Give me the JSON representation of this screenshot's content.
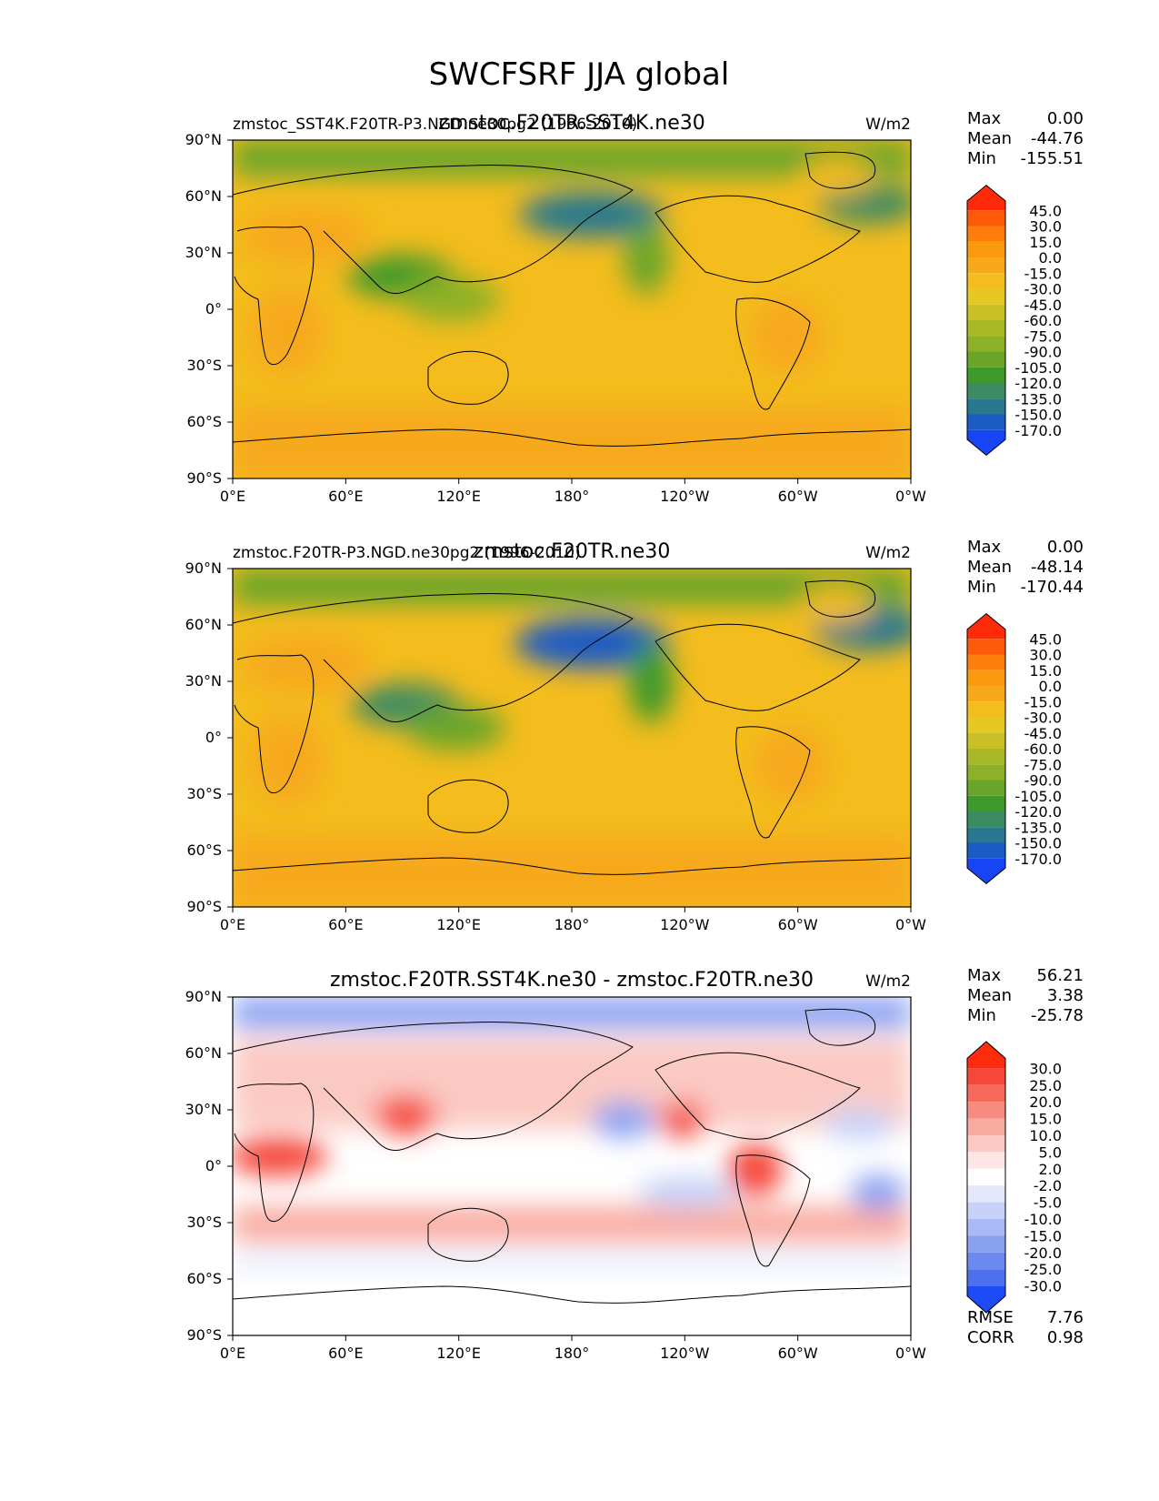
{
  "chart_data": {
    "type": "heatmap",
    "title": "SWCFSRF JJA global",
    "lon_ticks": [
      "0°E",
      "60°E",
      "120°E",
      "180°",
      "120°W",
      "60°W",
      "0°W"
    ],
    "lat_ticks": [
      "90°N",
      "60°N",
      "30°N",
      "0°",
      "30°S",
      "60°S",
      "90°S"
    ],
    "panels": [
      {
        "case_label": "zmstoc_SST4K.F20TR-P3.NGD.ne30pg2 (1996-2010)",
        "title": "zmstoc.F20TR.SST4K.ne30",
        "units": "W/m2",
        "stats": [
          {
            "label": "Max",
            "value": "0.00"
          },
          {
            "label": "Mean",
            "value": "-44.76"
          },
          {
            "label": "Min",
            "value": "-155.51"
          }
        ],
        "colorbar_levels": [
          "45.0",
          "30.0",
          "15.0",
          "0.0",
          "-15.0",
          "-30.0",
          "-45.0",
          "-60.0",
          "-75.0",
          "-90.0",
          "-105.0",
          "-120.0",
          "-135.0",
          "-150.0",
          "-170.0"
        ],
        "colorbar_colors": [
          "#ff2a0a",
          "#ff5a0a",
          "#ff7d0a",
          "#fa9a0c",
          "#f7a91b",
          "#f4bc1d",
          "#e5c824",
          "#c8c026",
          "#a8b925",
          "#8cb028",
          "#6aa52a",
          "#3f9a2c",
          "#3c8b62",
          "#28788f",
          "#1a5cc4",
          "#1744f5"
        ]
      },
      {
        "case_label": "zmstoc.F20TR-P3.NGD.ne30pg2 (1996-2010)",
        "title": "zmstoc.F20TR.ne30",
        "units": "W/m2",
        "stats": [
          {
            "label": "Max",
            "value": "0.00"
          },
          {
            "label": "Mean",
            "value": "-48.14"
          },
          {
            "label": "Min",
            "value": "-170.44"
          }
        ],
        "colorbar_levels": [
          "45.0",
          "30.0",
          "15.0",
          "0.0",
          "-15.0",
          "-30.0",
          "-45.0",
          "-60.0",
          "-75.0",
          "-90.0",
          "-105.0",
          "-120.0",
          "-135.0",
          "-150.0",
          "-170.0"
        ],
        "colorbar_colors": [
          "#ff2a0a",
          "#ff5a0a",
          "#ff7d0a",
          "#fa9a0c",
          "#f7a91b",
          "#f4bc1d",
          "#e5c824",
          "#c8c026",
          "#a8b925",
          "#8cb028",
          "#6aa52a",
          "#3f9a2c",
          "#3c8b62",
          "#28788f",
          "#1a5cc4",
          "#1744f5"
        ]
      },
      {
        "case_label": "",
        "title": "zmstoc.F20TR.SST4K.ne30 - zmstoc.F20TR.ne30",
        "units": "W/m2",
        "stats": [
          {
            "label": "Max",
            "value": "56.21"
          },
          {
            "label": "Mean",
            "value": "3.38"
          },
          {
            "label": "Min",
            "value": "-25.78"
          }
        ],
        "extra_stats": [
          {
            "label": "RMSE",
            "value": "7.76"
          },
          {
            "label": "CORR",
            "value": "0.98"
          }
        ],
        "colorbar_levels": [
          "30.0",
          "25.0",
          "20.0",
          "15.0",
          "10.0",
          "5.0",
          "2.0",
          "-2.0",
          "-5.0",
          "-10.0",
          "-15.0",
          "-20.0",
          "-25.0",
          "-30.0"
        ],
        "colorbar_colors": [
          "#ff2b0d",
          "#f5473a",
          "#f66a5c",
          "#f88b7f",
          "#f9aba2",
          "#fbc9c2",
          "#fde6e3",
          "#ffffff",
          "#e3e8fb",
          "#c7d2f8",
          "#a8b9f5",
          "#8aa1f2",
          "#6c89f0",
          "#4d70ee",
          "#1c4bf7"
        ]
      }
    ]
  }
}
